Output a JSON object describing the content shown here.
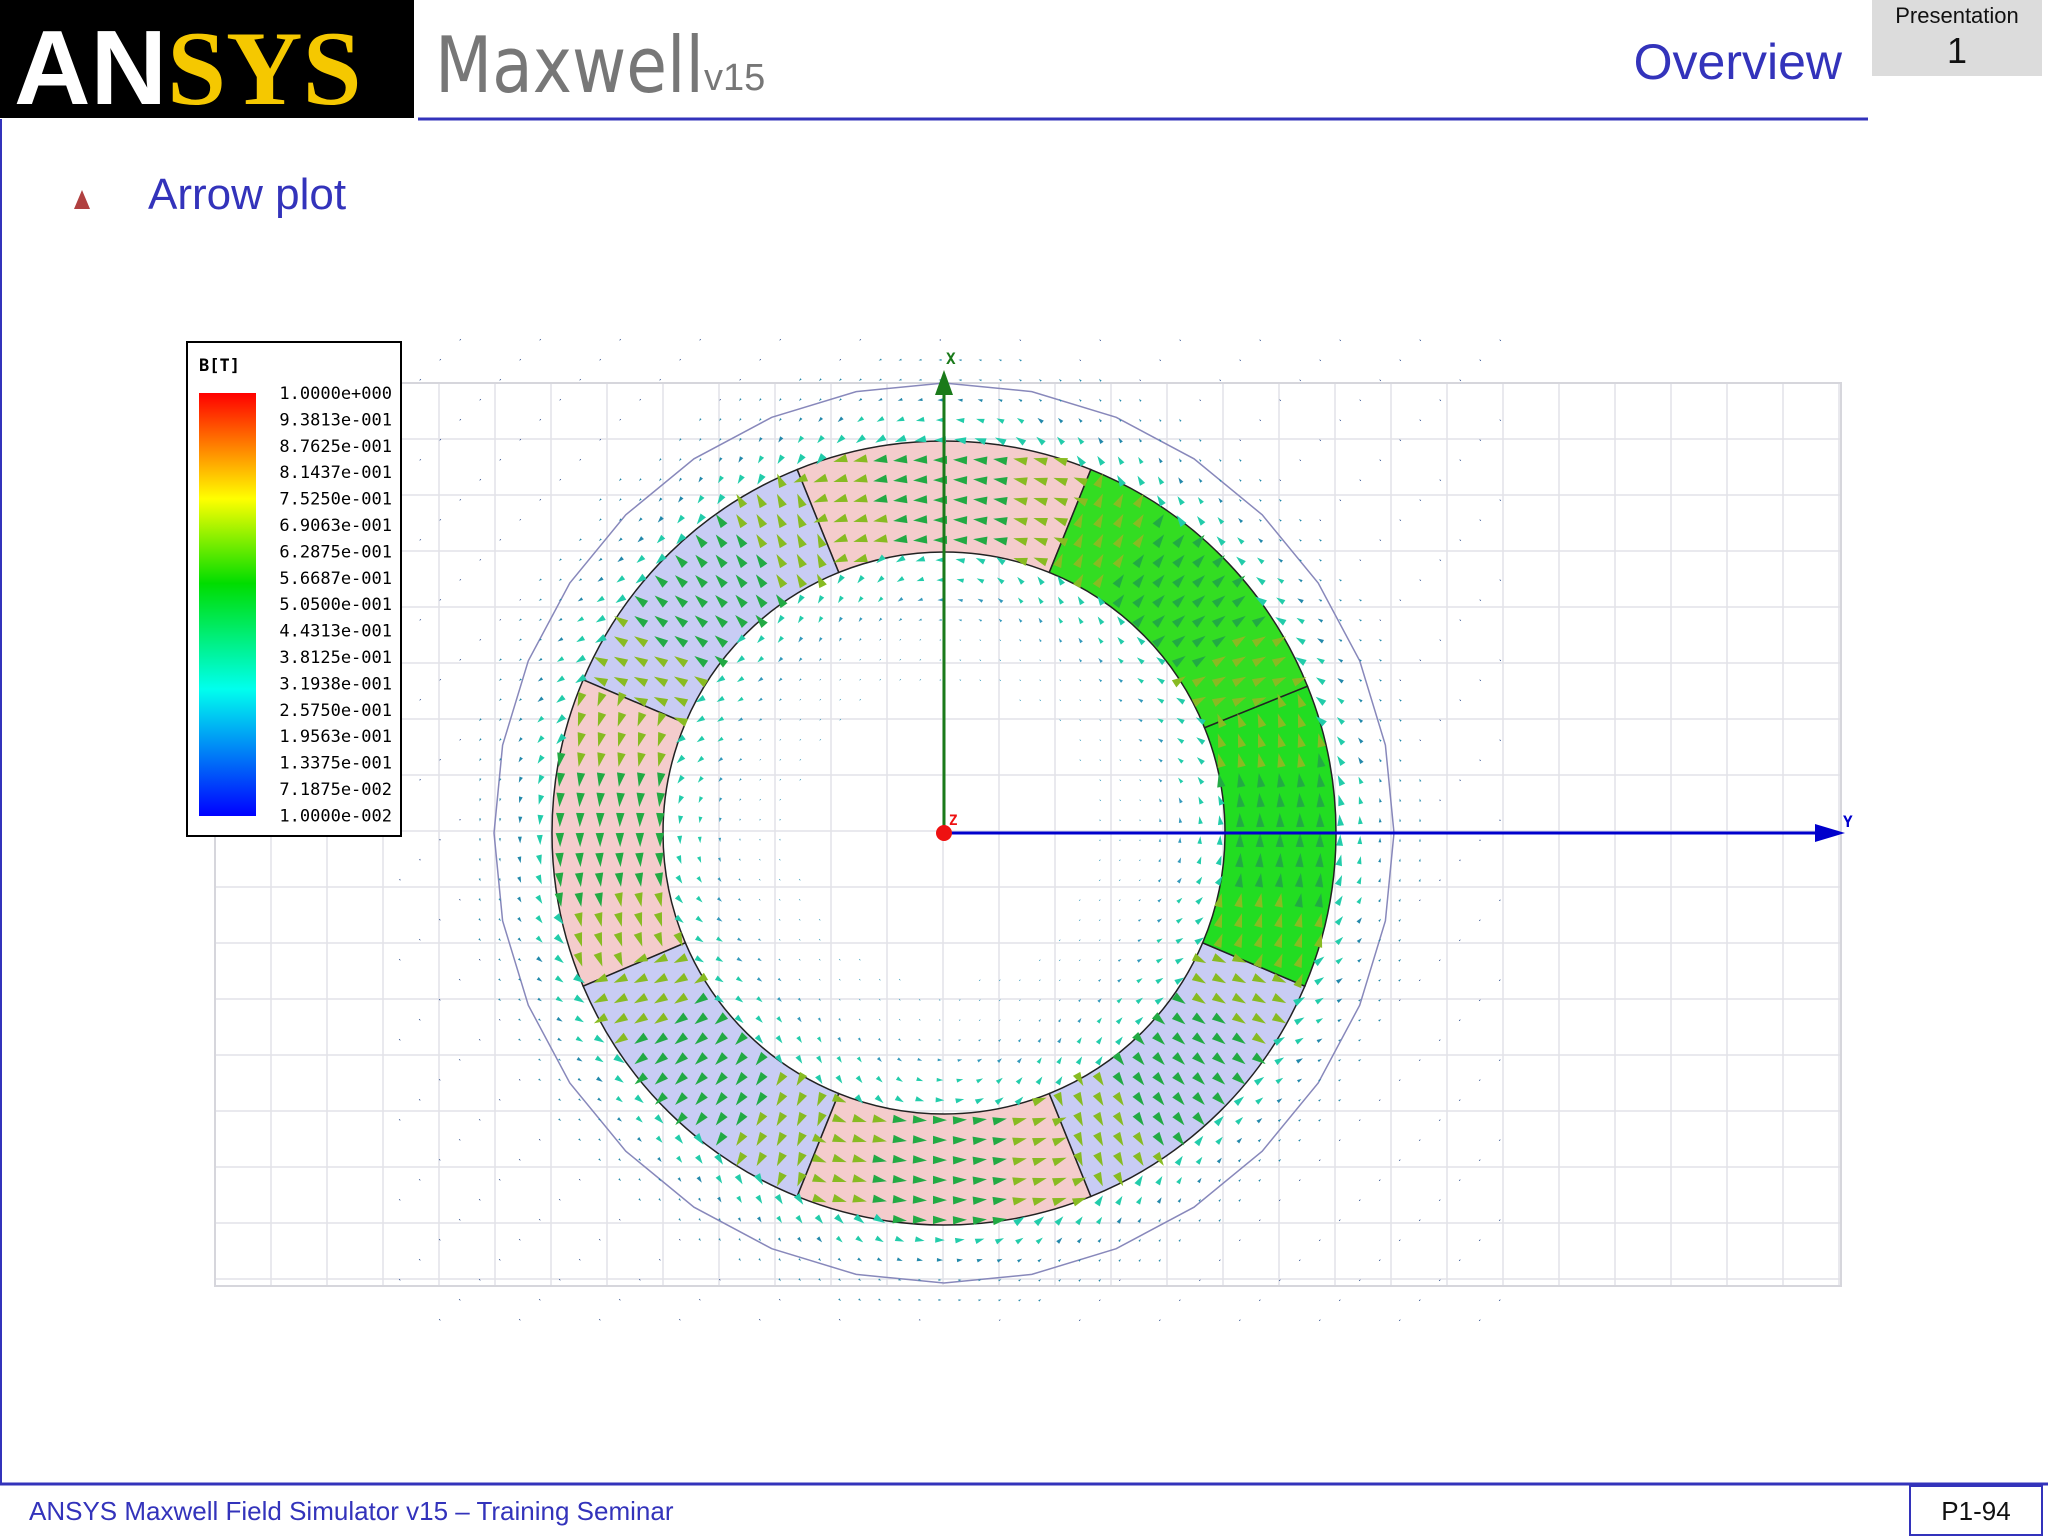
{
  "header": {
    "logo_white": "AN",
    "logo_yellow": "SYS",
    "product": "Maxwell",
    "version": "v15",
    "section": "Overview",
    "presentation_label": "Presentation",
    "presentation_number": "1"
  },
  "bullet": "Arrow plot",
  "plot": {
    "legend_title": "B[T]",
    "legend_labels": [
      "1.0000e+000",
      "9.3813e-001",
      "8.7625e-001",
      "8.1437e-001",
      "7.5250e-001",
      "6.9063e-001",
      "6.2875e-001",
      "5.6687e-001",
      "5.0500e-001",
      "4.4313e-001",
      "3.8125e-001",
      "3.1938e-001",
      "2.5750e-001",
      "1.9563e-001",
      "1.3375e-001",
      "7.1875e-002",
      "1.0000e-002"
    ],
    "axes": {
      "x": "X",
      "y": "Y",
      "z": "Z"
    }
  },
  "footer": {
    "text": "ANSYS Maxwell Field Simulator v15 – Training Seminar",
    "page": "P1-94"
  }
}
